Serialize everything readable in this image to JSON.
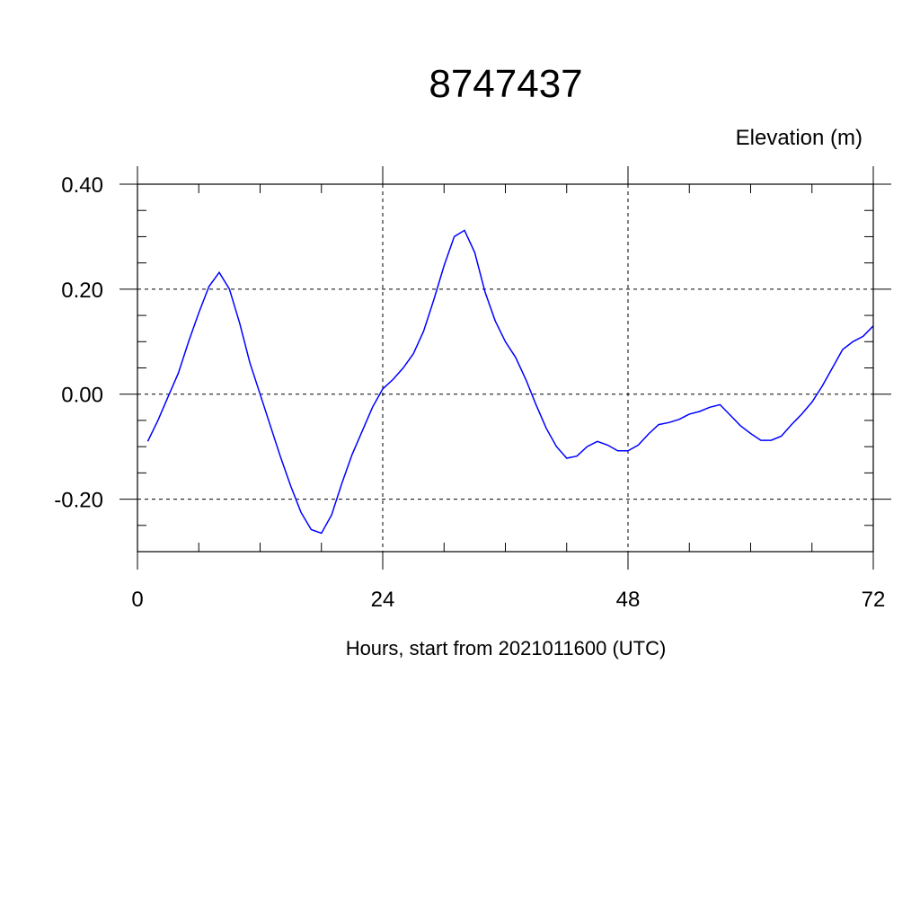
{
  "chart_data": {
    "type": "line",
    "title": "8747437",
    "units_label": "Elevation (m)",
    "xlabel": "Hours, start from 2021011600 (UTC)",
    "xlim": [
      0,
      72
    ],
    "ylim": [
      -0.3,
      0.4
    ],
    "x_ticks": [
      0,
      24,
      48,
      72
    ],
    "x_tick_labels": [
      "0",
      "24",
      "48",
      "72"
    ],
    "y_ticks": [
      -0.2,
      0.0,
      0.2,
      0.4
    ],
    "y_tick_labels": [
      "-0.20",
      "0.00",
      "0.20",
      "0.40"
    ],
    "x_minor_step": 6,
    "y_minor_step": 0.05,
    "grid": true,
    "line_color": "#0000ff",
    "series": [
      {
        "x": [
          1,
          2,
          3,
          4,
          5,
          6,
          7,
          8,
          9,
          10,
          11,
          12,
          13,
          14,
          15,
          16,
          17,
          18,
          19,
          20,
          21,
          22,
          23,
          24,
          25,
          26,
          27,
          28,
          29,
          30,
          31,
          32,
          33,
          34,
          35,
          36,
          37,
          38,
          39,
          40,
          41,
          42,
          43,
          44,
          45,
          46,
          47,
          48,
          49,
          50,
          51,
          52,
          53,
          54,
          55,
          56,
          57,
          58,
          59,
          60,
          61,
          62,
          63,
          64,
          65,
          66,
          67,
          68,
          69,
          70,
          71,
          72
        ],
        "values": [
          -0.09,
          -0.05,
          -0.005,
          0.04,
          0.1,
          0.155,
          0.205,
          0.232,
          0.2,
          0.135,
          0.06,
          0.0,
          -0.06,
          -0.12,
          -0.175,
          -0.225,
          -0.258,
          -0.265,
          -0.23,
          -0.17,
          -0.115,
          -0.07,
          -0.025,
          0.01,
          0.028,
          0.05,
          0.077,
          0.12,
          0.18,
          0.245,
          0.3,
          0.312,
          0.27,
          0.195,
          0.14,
          0.1,
          0.07,
          0.028,
          -0.02,
          -0.065,
          -0.1,
          -0.122,
          -0.118,
          -0.1,
          -0.09,
          -0.097,
          -0.108,
          -0.108,
          -0.097,
          -0.076,
          -0.058,
          -0.054,
          -0.048,
          -0.038,
          -0.033,
          -0.025,
          -0.02,
          -0.04,
          -0.06,
          -0.075,
          -0.088,
          -0.088,
          -0.08,
          -0.058,
          -0.038,
          -0.015,
          0.015,
          0.05,
          0.085,
          0.1,
          0.11,
          0.13
        ]
      }
    ]
  }
}
